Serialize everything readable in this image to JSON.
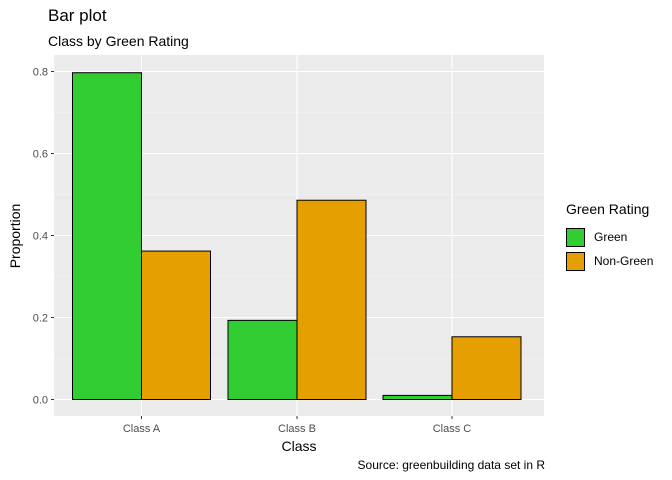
{
  "chart_data": {
    "type": "bar",
    "title": "Bar plot",
    "subtitle": "Class by Green Rating",
    "caption": "Source: greenbuilding data set in R",
    "xlabel": "Class",
    "ylabel": "Proportion",
    "categories": [
      "Class A",
      "Class B",
      "Class C"
    ],
    "series": [
      {
        "name": "Green",
        "values": [
          0.797,
          0.193,
          0.01
        ],
        "color": "#32CD32"
      },
      {
        "name": "Non-Green",
        "values": [
          0.362,
          0.486,
          0.153
        ],
        "color": "#E69F00"
      }
    ],
    "ylim": [
      0,
      0.8
    ],
    "yticks": [
      0.0,
      0.2,
      0.4,
      0.6,
      0.8
    ],
    "ytick_labels": [
      "0.0",
      "0.2",
      "0.4",
      "0.6",
      "0.8"
    ],
    "grid": true,
    "legend": {
      "title": "Green Rating",
      "position": "right"
    }
  }
}
